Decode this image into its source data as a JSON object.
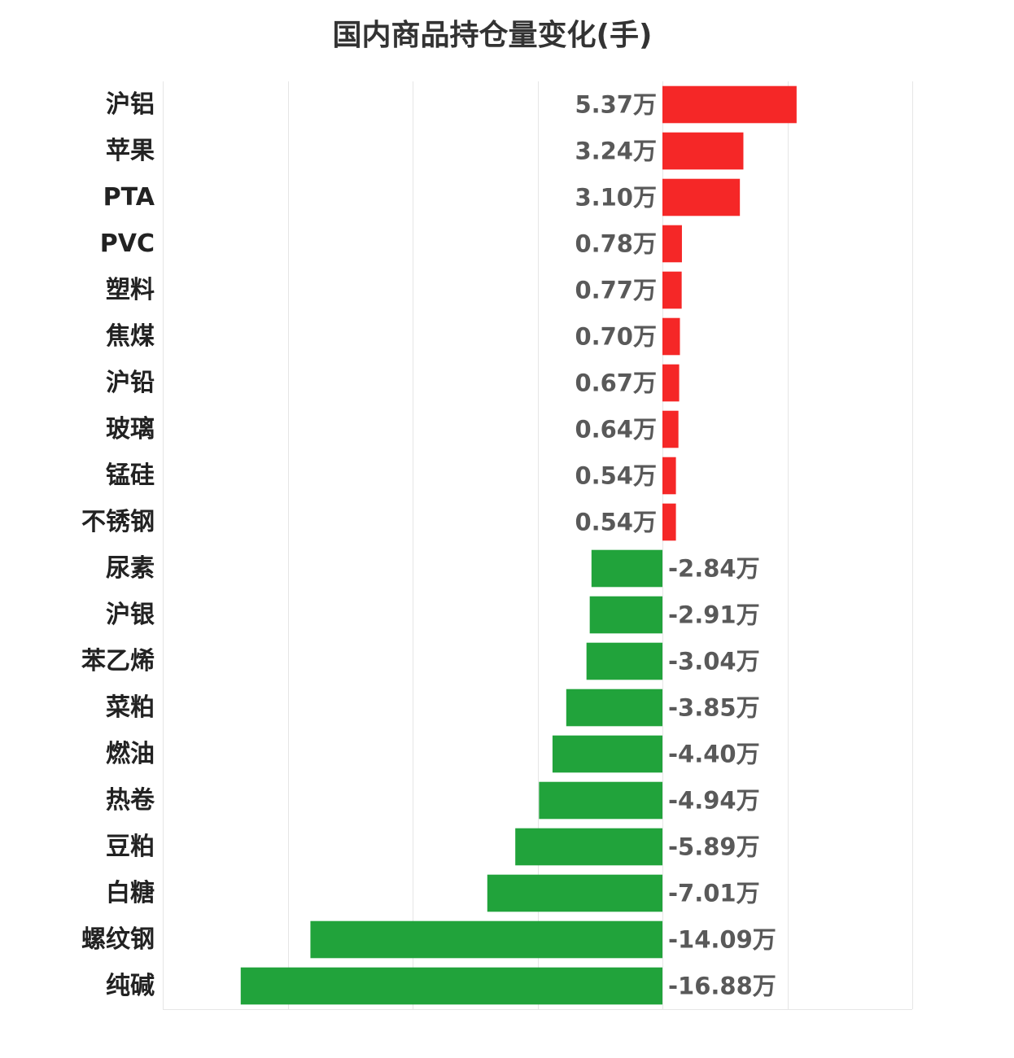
{
  "chart_data": {
    "type": "bar",
    "orientation": "horizontal",
    "title": "国内商品持仓量变化(手)",
    "categories": [
      "沪铝",
      "苹果",
      "PTA",
      "PVC",
      "塑料",
      "焦煤",
      "沪铅",
      "玻璃",
      "锰硅",
      "不锈钢",
      "尿素",
      "沪银",
      "苯乙烯",
      "菜粕",
      "燃油",
      "热卷",
      "豆粕",
      "白糖",
      "螺纹钢",
      "纯碱"
    ],
    "values": [
      53700,
      32400,
      31000,
      7800,
      7700,
      7000,
      6700,
      6400,
      5400,
      5400,
      -28400,
      -29100,
      -30400,
      -38500,
      -44000,
      -49400,
      -58900,
      -70100,
      -140900,
      -168800
    ],
    "value_labels": [
      "5.37万",
      "3.24万",
      "3.10万",
      "0.78万",
      "0.77万",
      "0.70万",
      "0.67万",
      "0.64万",
      "0.54万",
      "0.54万",
      "-2.84万",
      "-2.91万",
      "-3.04万",
      "-3.85万",
      "-4.40万",
      "-4.94万",
      "-5.89万",
      "-7.01万",
      "-14.09万",
      "-16.88万"
    ],
    "xlim": [
      -200000,
      100000
    ],
    "grid": true,
    "legend": "none",
    "colors": {
      "positive": "#f52727",
      "negative": "#21a33b"
    }
  }
}
